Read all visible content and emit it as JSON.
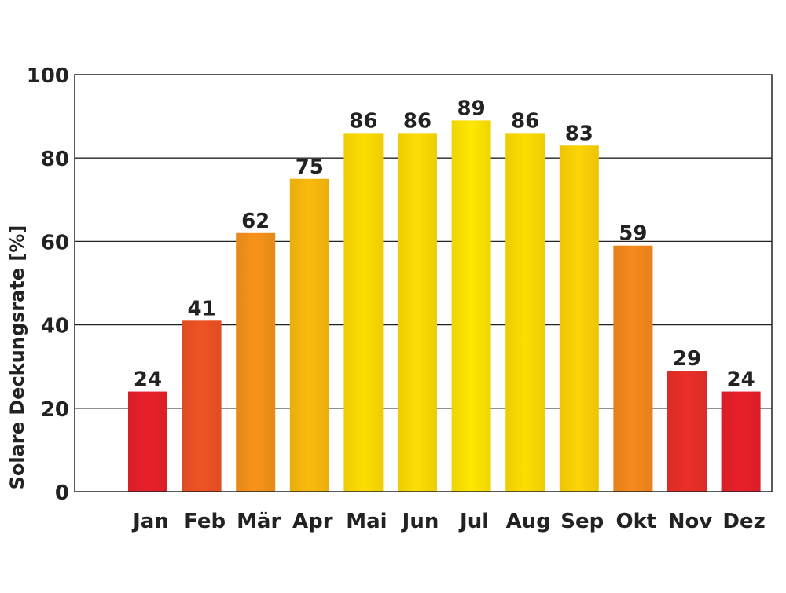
{
  "chart_data": {
    "type": "bar",
    "title": "",
    "xlabel": "",
    "ylabel": "Solare Deckungsrate [%]",
    "ylim": [
      0,
      100
    ],
    "yticks": [
      0,
      20,
      40,
      60,
      80,
      100
    ],
    "grid": true,
    "categories": [
      "Jan",
      "Feb",
      "Mär",
      "Apr",
      "Mai",
      "Jun",
      "Jul",
      "Aug",
      "Sep",
      "Okt",
      "Nov",
      "Dez"
    ],
    "values": [
      24,
      41,
      62,
      75,
      86,
      86,
      89,
      86,
      83,
      59,
      29,
      24
    ],
    "data_labels": [
      "24",
      "41",
      "62",
      "75",
      "86",
      "86",
      "89",
      "86",
      "83",
      "59",
      "29",
      "24"
    ],
    "bar_colors": {
      "low": "#e8202a",
      "mid": "#f5821f",
      "high": "#ffe600"
    }
  }
}
